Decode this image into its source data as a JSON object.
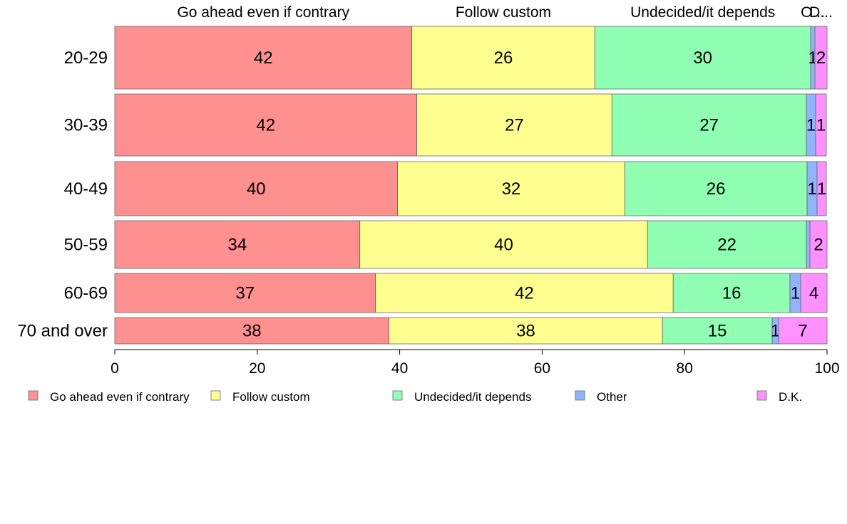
{
  "chart_data": {
    "type": "bar",
    "orientation": "horizontal",
    "stacked": true,
    "categories": [
      "20-29",
      "30-39",
      "40-49",
      "50-59",
      "60-69",
      "70 and over"
    ],
    "series": [
      {
        "name": "Go ahead even if contrary",
        "color": "#ff9090",
        "values": [
          41.7,
          42.4,
          39.7,
          34.4,
          36.6,
          38.5
        ],
        "labels": [
          "42",
          "42",
          "40",
          "34",
          "37",
          "38"
        ]
      },
      {
        "name": "Follow custom",
        "color": "#ffff90",
        "values": [
          25.7,
          27.4,
          31.9,
          40.4,
          41.8,
          38.4
        ],
        "labels": [
          "26",
          "27",
          "32",
          "40",
          "42",
          "38"
        ]
      },
      {
        "name": "Undecided/it depends",
        "color": "#90ffb4",
        "values": [
          30.3,
          27.3,
          25.6,
          22.3,
          16.4,
          15.4
        ],
        "labels": [
          "30",
          "27",
          "26",
          "22",
          "16",
          "15"
        ]
      },
      {
        "name": "Other",
        "color": "#90b4ff",
        "values": [
          0.6,
          1.3,
          1.4,
          0.5,
          1.5,
          0.9
        ],
        "labels": [
          "1",
          "1",
          "1",
          "",
          "1",
          "1"
        ]
      },
      {
        "name": "D.K.",
        "color": "#ff90ff",
        "values": [
          1.7,
          1.5,
          1.3,
          2.4,
          3.7,
          6.8
        ],
        "labels": [
          "2",
          "1",
          "1",
          "2",
          "4",
          "7"
        ]
      }
    ],
    "top_labels": [
      "Go ahead even if contrary",
      "Follow custom",
      "Undecided/it depends",
      "O...",
      "D..."
    ],
    "x_ticks": [
      "0",
      "20",
      "40",
      "60",
      "80",
      "100"
    ],
    "xlim": [
      0,
      100
    ],
    "legend_position": "bottom",
    "grid": false
  }
}
